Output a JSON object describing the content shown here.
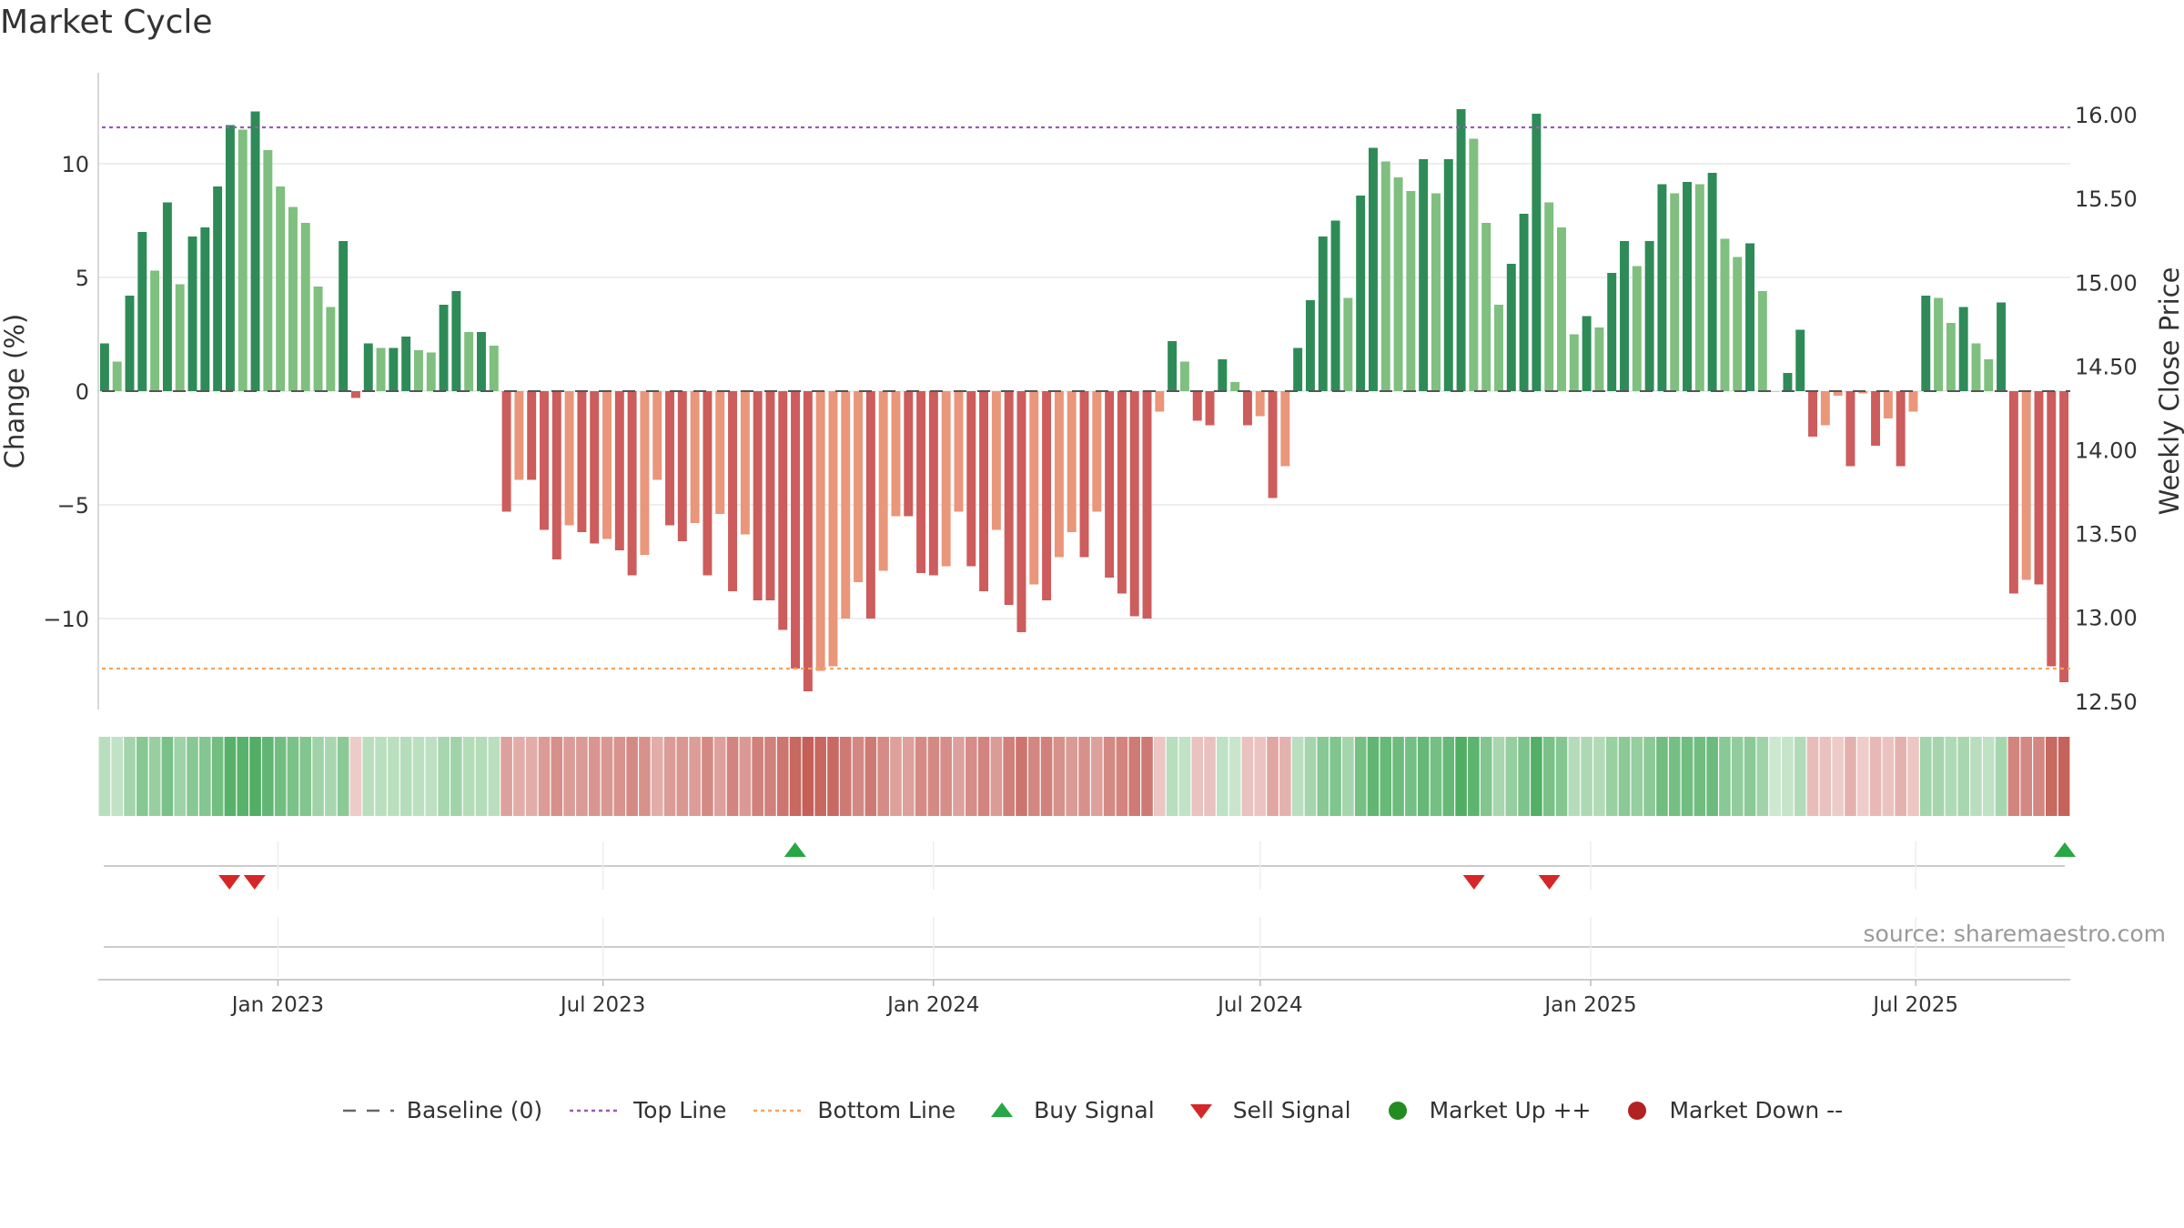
{
  "title": "Market Cycle",
  "source_text": "source: sharemaestro.com",
  "colors": {
    "up_dark": "#2e8b57",
    "up_light": "#7fbf7f",
    "down_dark": "#cd5c5c",
    "down_light": "#e9967a",
    "top_line": "#9b59b6",
    "bottom_line": "#f4a460",
    "buy": "#28a745",
    "sell": "#d62728",
    "market_up": "#228b22",
    "market_down": "#b22222"
  },
  "legend": {
    "baseline": "Baseline (0)",
    "top_line": "Top Line",
    "bottom_line": "Bottom Line",
    "buy": "Buy Signal",
    "sell": "Sell Signal",
    "market_up": "Market Up ++",
    "market_down": "Market Down --"
  },
  "chart_data": {
    "type": "bar",
    "title": "Market Cycle",
    "ylabel_left": "Change (%)",
    "ylabel_right": "Weekly Close Price",
    "y_left_lim": [
      -14,
      14
    ],
    "y_left_ticks": [
      10,
      5,
      0,
      -5,
      -10
    ],
    "y_left_tick_labels": [
      "10",
      "5",
      "0",
      "−5",
      "−10"
    ],
    "y_right_lim": [
      12.45,
      16.25
    ],
    "y_right_ticks": [
      16.0,
      15.5,
      15.0,
      14.5,
      14.0,
      13.5,
      13.0,
      12.5
    ],
    "y_right_tick_labels": [
      "16.00",
      "15.50",
      "15.00",
      "14.50",
      "14.00",
      "13.50",
      "13.00",
      "12.50"
    ],
    "x_start": "2022-09-26",
    "x_end": "2025-09-22",
    "x_tick_dates": [
      "2023-01-01",
      "2023-07-01",
      "2024-01-01",
      "2024-07-01",
      "2025-01-01",
      "2025-07-01"
    ],
    "x_tick_labels": [
      "Jan 2023",
      "Jul 2023",
      "Jan 2024",
      "Jul 2024",
      "Jan 2025",
      "Jul 2025"
    ],
    "top_line": 11.6,
    "bottom_line": -12.2,
    "baseline": 0,
    "grid": true,
    "legend_position": "bottom",
    "series": [
      {
        "name": "Change (%)",
        "values": [
          2.1,
          1.3,
          4.2,
          7.0,
          5.3,
          8.3,
          4.7,
          6.8,
          7.2,
          9.0,
          11.7,
          11.5,
          12.3,
          10.6,
          9.0,
          8.1,
          7.4,
          4.6,
          3.7,
          6.6,
          -0.3,
          2.1,
          1.9,
          1.9,
          2.4,
          1.8,
          1.7,
          3.8,
          4.4,
          2.6,
          2.6,
          2.0,
          -5.3,
          -3.9,
          -3.9,
          -6.1,
          -7.4,
          -5.9,
          -6.2,
          -6.7,
          -6.5,
          -7.0,
          -8.1,
          -7.2,
          -3.9,
          -5.9,
          -6.6,
          -5.8,
          -8.1,
          -5.4,
          -8.8,
          -6.3,
          -9.2,
          -9.2,
          -10.5,
          -12.2,
          -13.2,
          -12.3,
          -12.1,
          -10.0,
          -8.4,
          -10.0,
          -7.9,
          -5.5,
          -5.5,
          -8.0,
          -8.1,
          -7.7,
          -5.3,
          -7.7,
          -8.8,
          -6.1,
          -9.4,
          -10.6,
          -8.5,
          -9.2,
          -7.3,
          -6.2,
          -7.3,
          -5.3,
          -8.2,
          -8.9,
          -9.9,
          -10.0,
          -0.9,
          2.2,
          1.3,
          -1.3,
          -1.5,
          1.4,
          0.4,
          -1.5,
          -1.1,
          -4.7,
          -3.3,
          1.9,
          4.0,
          6.8,
          7.5,
          4.1,
          8.6,
          10.7,
          10.1,
          9.4,
          8.8,
          10.2,
          8.7,
          10.2,
          12.4,
          11.1,
          7.4,
          3.8,
          5.6,
          7.8,
          12.2,
          8.3,
          7.2,
          2.5,
          3.3,
          2.8,
          5.2,
          6.6,
          5.5,
          6.6,
          9.1,
          8.7,
          9.2,
          9.1,
          9.6,
          6.7,
          5.9,
          6.5,
          4.4,
          0.0,
          0.8,
          2.7,
          -2.0,
          -1.5,
          -0.2,
          -3.3,
          -0.1,
          -2.4,
          -1.2,
          -3.3,
          -0.9,
          4.2,
          4.1,
          3.0,
          3.7,
          2.1,
          1.4,
          3.9,
          -8.9,
          -8.3,
          -8.5,
          -12.1,
          -12.8
        ]
      }
    ],
    "buy_signal_dates": [
      "2023-10-16",
      "2025-09-22"
    ],
    "sell_signal_dates": [
      "2022-12-05",
      "2022-12-19",
      "2024-10-28",
      "2024-12-09"
    ],
    "market_up_dates": [],
    "market_down_dates": []
  }
}
